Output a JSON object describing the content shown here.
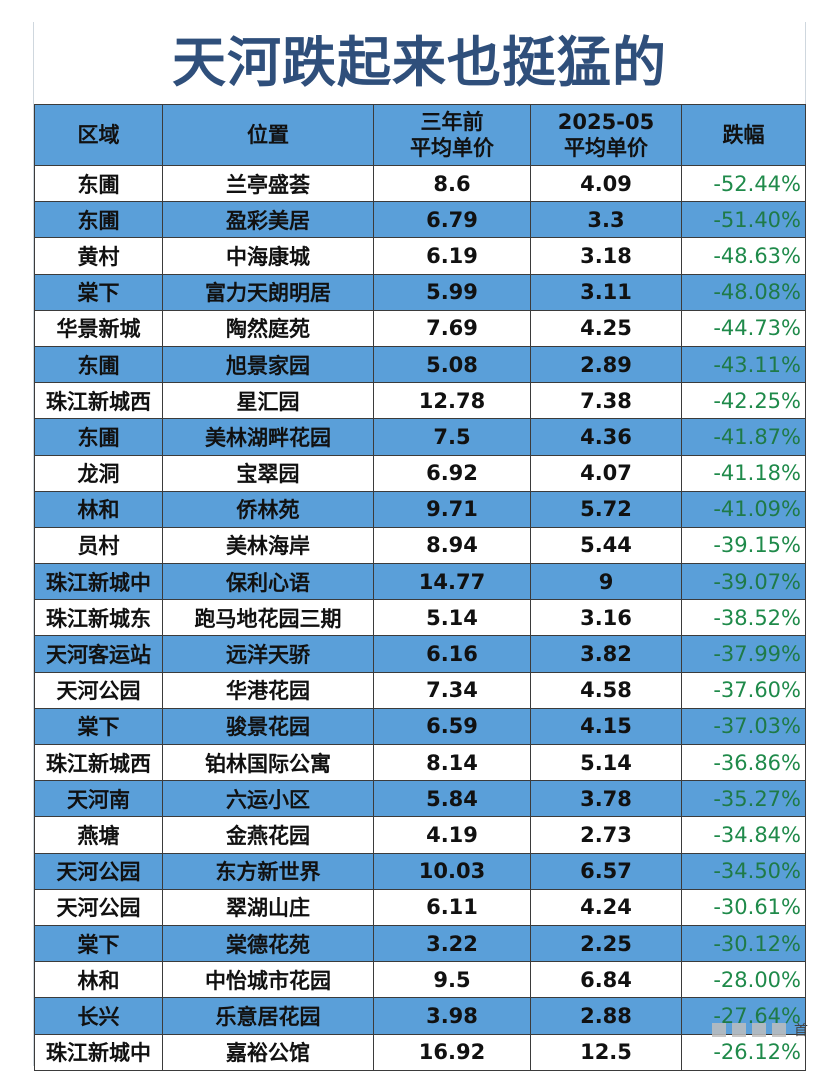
{
  "title": "天河跌起来也挺猛的",
  "headers": {
    "area": "区域",
    "location": "位置",
    "old_price_line1": "三年前",
    "old_price_line2": "平均单价",
    "new_price_line1": "2025-05",
    "new_price_line2": "平均单价",
    "change": "跌幅"
  },
  "rows": [
    {
      "area": "东圃",
      "location": "兰亭盛荟",
      "old": "8.6",
      "new": "4.09",
      "change": "-52.44%"
    },
    {
      "area": "东圃",
      "location": "盈彩美居",
      "old": "6.79",
      "new": "3.3",
      "change": "-51.40%"
    },
    {
      "area": "黄村",
      "location": "中海康城",
      "old": "6.19",
      "new": "3.18",
      "change": "-48.63%"
    },
    {
      "area": "棠下",
      "location": "富力天朗明居",
      "old": "5.99",
      "new": "3.11",
      "change": "-48.08%"
    },
    {
      "area": "华景新城",
      "location": "陶然庭苑",
      "old": "7.69",
      "new": "4.25",
      "change": "-44.73%"
    },
    {
      "area": "东圃",
      "location": "旭景家园",
      "old": "5.08",
      "new": "2.89",
      "change": "-43.11%"
    },
    {
      "area": "珠江新城西",
      "location": "星汇园",
      "old": "12.78",
      "new": "7.38",
      "change": "-42.25%"
    },
    {
      "area": "东圃",
      "location": "美林湖畔花园",
      "old": "7.5",
      "new": "4.36",
      "change": "-41.87%"
    },
    {
      "area": "龙洞",
      "location": "宝翠园",
      "old": "6.92",
      "new": "4.07",
      "change": "-41.18%"
    },
    {
      "area": "林和",
      "location": "侨林苑",
      "old": "9.71",
      "new": "5.72",
      "change": "-41.09%"
    },
    {
      "area": "员村",
      "location": "美林海岸",
      "old": "8.94",
      "new": "5.44",
      "change": "-39.15%"
    },
    {
      "area": "珠江新城中",
      "location": "保利心语",
      "old": "14.77",
      "new": "9",
      "change": "-39.07%"
    },
    {
      "area": "珠江新城东",
      "location": "跑马地花园三期",
      "old": "5.14",
      "new": "3.16",
      "change": "-38.52%"
    },
    {
      "area": "天河客运站",
      "location": "远洋天骄",
      "old": "6.16",
      "new": "3.82",
      "change": "-37.99%"
    },
    {
      "area": "天河公园",
      "location": "华港花园",
      "old": "7.34",
      "new": "4.58",
      "change": "-37.60%"
    },
    {
      "area": "棠下",
      "location": "骏景花园",
      "old": "6.59",
      "new": "4.15",
      "change": "-37.03%"
    },
    {
      "area": "珠江新城西",
      "location": "铂林国际公寓",
      "old": "8.14",
      "new": "5.14",
      "change": "-36.86%"
    },
    {
      "area": "天河南",
      "location": "六运小区",
      "old": "5.84",
      "new": "3.78",
      "change": "-35.27%"
    },
    {
      "area": "燕塘",
      "location": "金燕花园",
      "old": "4.19",
      "new": "2.73",
      "change": "-34.84%"
    },
    {
      "area": "天河公园",
      "location": "东方新世界",
      "old": "10.03",
      "new": "6.57",
      "change": "-34.50%"
    },
    {
      "area": "天河公园",
      "location": "翠湖山庄",
      "old": "6.11",
      "new": "4.24",
      "change": "-30.61%"
    },
    {
      "area": "棠下",
      "location": "棠德花苑",
      "old": "3.22",
      "new": "2.25",
      "change": "-30.12%"
    },
    {
      "area": "林和",
      "location": "中怡城市花园",
      "old": "9.5",
      "new": "6.84",
      "change": "-28.00%"
    },
    {
      "area": "长兴",
      "location": "乐意居花园",
      "old": "3.98",
      "new": "2.88",
      "change": "-27.64%"
    },
    {
      "area": "珠江新城中",
      "location": "嘉裕公馆",
      "old": "16.92",
      "new": "12.5",
      "change": "-26.12%"
    }
  ],
  "colors": {
    "title": "#2f4f7b",
    "header_bg": "#5a9fd9",
    "stripe_bg": "#5a9fd9",
    "change_text": "#1f8a4a"
  },
  "watermark": {
    "char": "首"
  }
}
